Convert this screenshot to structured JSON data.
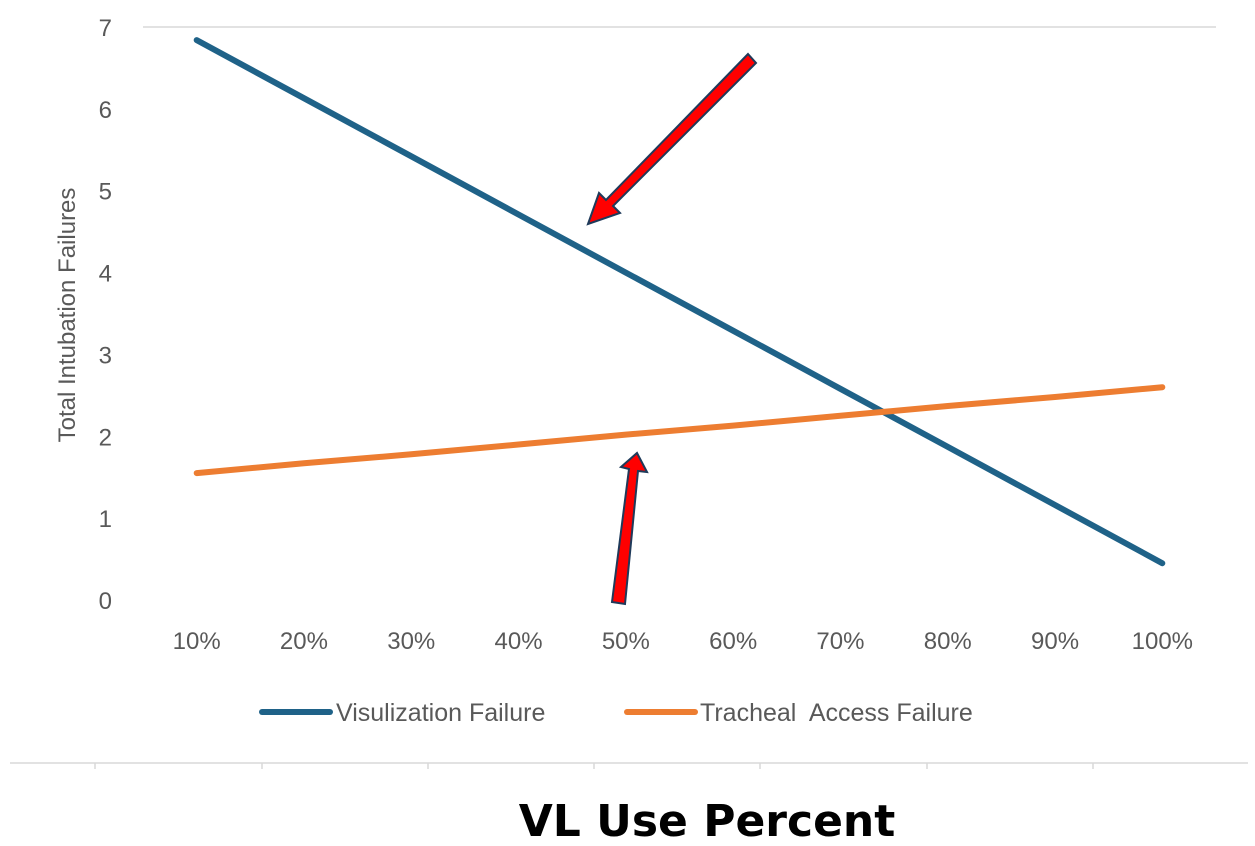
{
  "chart_data": {
    "type": "line",
    "categories": [
      "10%",
      "20%",
      "30%",
      "40%",
      "50%",
      "60%",
      "70%",
      "80%",
      "90%",
      "100%"
    ],
    "series": [
      {
        "name": "Visulization Failure",
        "color": "#1f6288",
        "values": [
          6.84,
          6.13,
          5.42,
          4.71,
          4.0,
          3.29,
          2.58,
          1.87,
          1.16,
          0.45
        ]
      },
      {
        "name": "Tracheal  Access Failure",
        "color": "#ed7d31",
        "values": [
          1.55,
          1.67,
          1.78,
          1.9,
          2.02,
          2.13,
          2.25,
          2.37,
          2.48,
          2.6
        ]
      }
    ],
    "ylabel": "Total Intubation Failures",
    "xlabel": "VL Use Percent",
    "ylim": [
      0,
      7
    ],
    "yticks": [
      "0",
      "1",
      "2",
      "3",
      "4",
      "5",
      "6",
      "7"
    ],
    "grid": "horizontal",
    "legend": "bottom"
  },
  "annotations": {
    "arrow_color": "#ff0000",
    "arrow_outline": "#1f3a5a"
  }
}
